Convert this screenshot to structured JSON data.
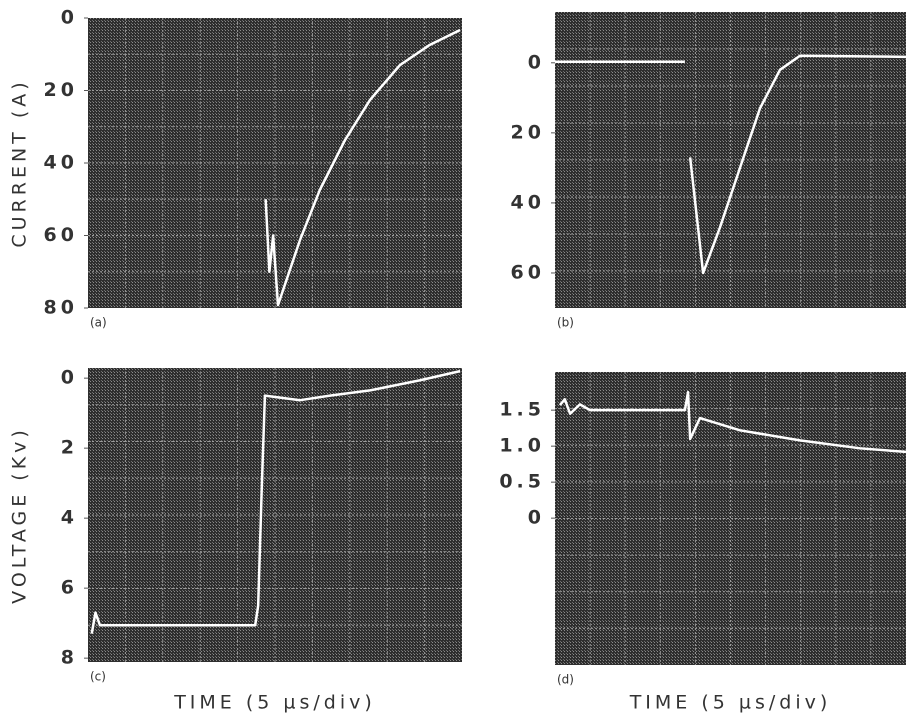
{
  "chart_data": [
    {
      "type": "line",
      "panel_label": "(a)",
      "y_label": "CURRENT (A)",
      "color": "#ffffff",
      "y_inverted": true,
      "xlim": [
        0,
        10
      ],
      "ylim": [
        0,
        80
      ],
      "yticks": [
        0,
        20,
        40,
        60,
        80
      ],
      "x": [
        4.75,
        4.85,
        4.95,
        5.08,
        5.67,
        6.2,
        6.87,
        7.54,
        8.34,
        9.14,
        9.95
      ],
      "values": [
        50,
        70,
        60,
        79.2,
        61.2,
        47.4,
        33.7,
        22.6,
        13,
        7.4,
        3.3
      ]
    },
    {
      "type": "line",
      "panel_label": "(b)",
      "color": "#ffffff",
      "y_inverted": true,
      "xlim": [
        0,
        10
      ],
      "ylim": [
        -14.5,
        70
      ],
      "yticks": [
        0,
        20,
        40,
        60
      ],
      "x": [
        0,
        3.7,
        3.78,
        3.85,
        4.22,
        4.7,
        5.27,
        5.84,
        6.41,
        6.98,
        10
      ],
      "values": [
        -0.3,
        -0.3,
        null,
        27,
        60,
        47,
        30,
        13,
        2,
        -2,
        -1.7
      ]
    },
    {
      "type": "line",
      "panel_label": "(c)",
      "y_label": "VOLTAGE (Kv)",
      "x_label": "TIME (5 µs/div)",
      "color": "#ffffff",
      "y_inverted": true,
      "xlim": [
        0,
        10
      ],
      "ylim": [
        -0.29,
        8.11
      ],
      "yticks": [
        0,
        2,
        4,
        6,
        8
      ],
      "x": [
        0.1,
        0.2,
        0.32,
        4.47,
        4.55,
        4.65,
        4.73,
        5.67,
        6.47,
        7.54,
        8.88,
        9.95
      ],
      "values": [
        7.3,
        6.7,
        7.06,
        7.06,
        6.5,
        3,
        0.5,
        0.63,
        0.5,
        0.35,
        0.06,
        -0.2
      ]
    },
    {
      "type": "line",
      "panel_label": "(d)",
      "x_label": "TIME (5 µs/div)",
      "color": "#ffffff",
      "y_inverted": false,
      "xlim": [
        0,
        10
      ],
      "ylim": [
        -2.04,
        2.03
      ],
      "yticks": [
        {
          "value": 1.5,
          "label": "1.5"
        },
        {
          "value": 1,
          "label": "1.0"
        },
        0.5,
        0
      ],
      "x": [
        0.14,
        0.28,
        0.43,
        0.71,
        1.0,
        3.7,
        3.79,
        3.85,
        4.13,
        5.27,
        6.98,
        8.69,
        10
      ],
      "values": [
        1.57,
        1.65,
        1.45,
        1.58,
        1.5,
        1.5,
        1.75,
        1.1,
        1.39,
        1.22,
        1.08,
        0.97,
        0.92
      ]
    }
  ]
}
